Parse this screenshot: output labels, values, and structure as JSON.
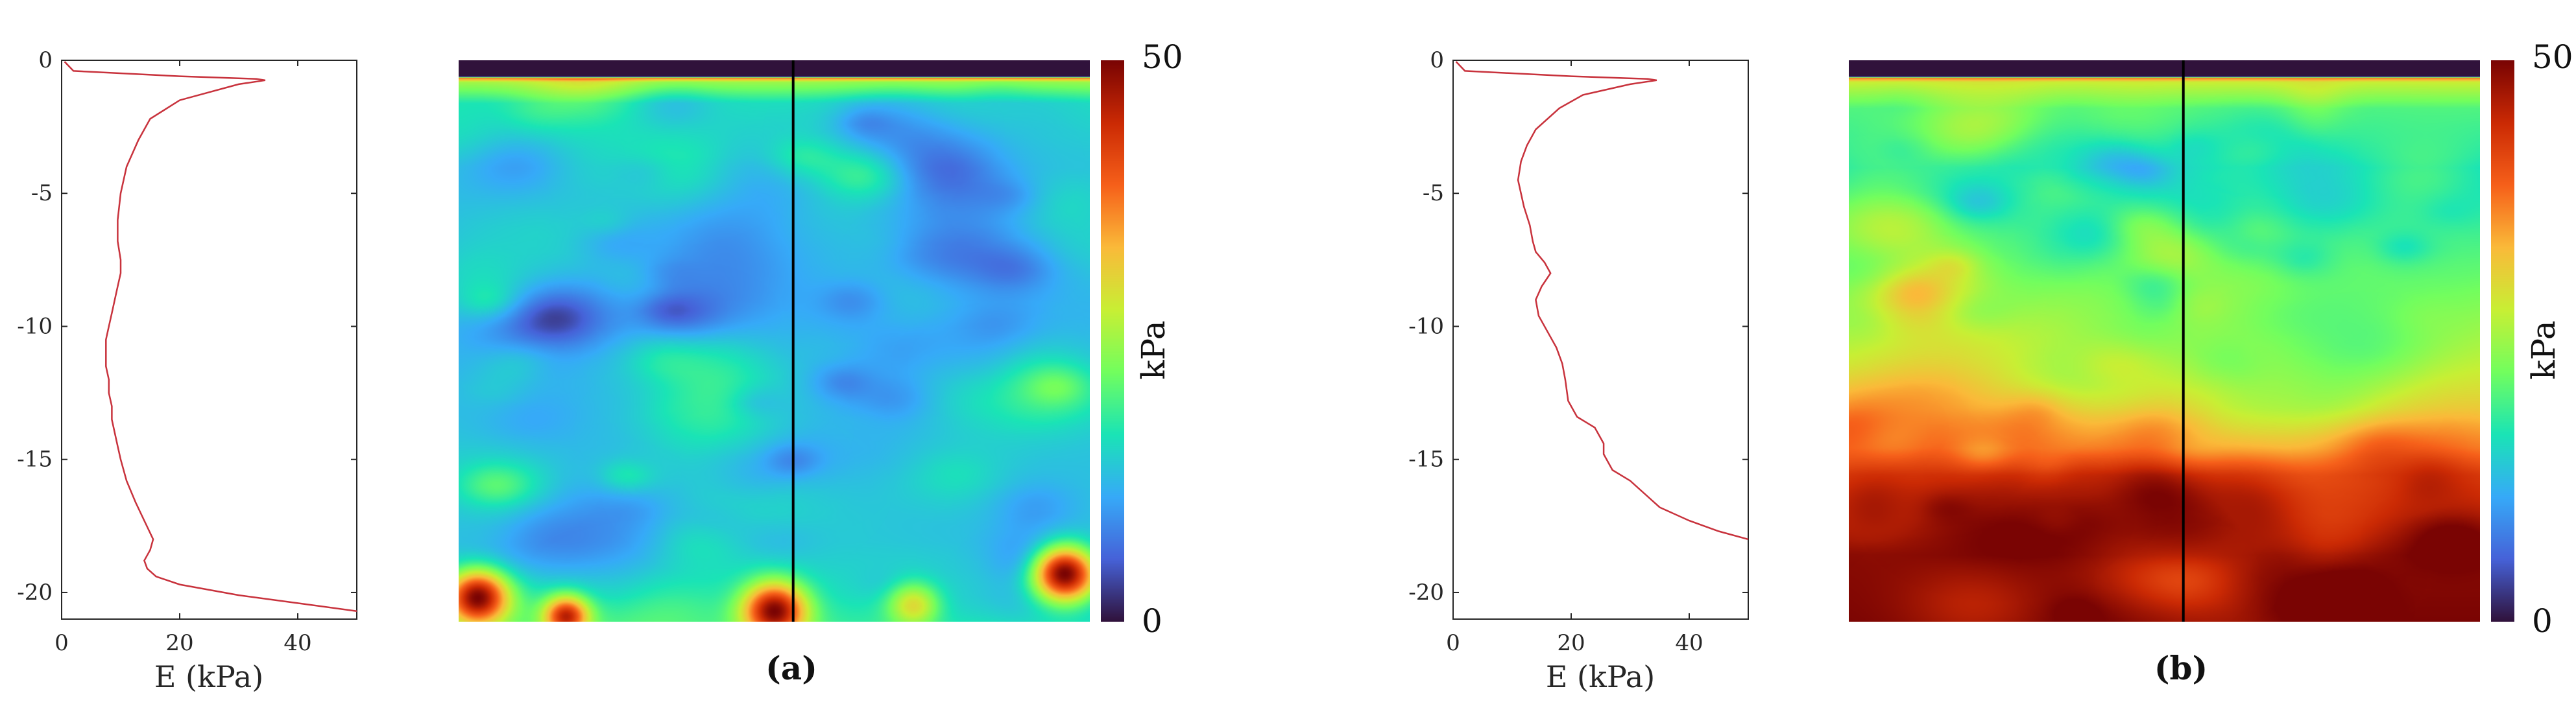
{
  "colors": {
    "profile_line": "#c8323c",
    "section_line": "#000000"
  },
  "colormap": "turbo",
  "chart_data": [
    {
      "panel": "a",
      "caption": "(a)",
      "profile": {
        "type": "line",
        "xlabel": "E (kPa)",
        "xlim": [
          0,
          50
        ],
        "ylim": [
          -21,
          0
        ],
        "xticks": [
          "0",
          "20",
          "40"
        ],
        "yticks": [
          "0",
          "-5",
          "-10",
          "-15",
          "-20"
        ],
        "x": [
          0.5,
          2,
          20,
          33,
          34.5,
          30,
          20,
          15,
          13,
          11,
          10,
          9.5,
          9.5,
          10,
          10,
          9.5,
          9,
          8.5,
          8,
          7.5,
          7.5,
          7.5,
          8,
          8,
          8.5,
          8.5,
          9,
          9.5,
          10,
          11,
          12.5,
          14,
          15.5,
          15,
          14,
          14.5,
          16,
          20,
          30,
          40,
          50
        ],
        "y": [
          -0.05,
          -0.4,
          -0.6,
          -0.7,
          -0.75,
          -0.9,
          -1.5,
          -2.2,
          -3.0,
          -4.0,
          -5.0,
          -6.0,
          -6.8,
          -7.5,
          -8.0,
          -8.5,
          -9.0,
          -9.5,
          -10.0,
          -10.5,
          -11.0,
          -11.5,
          -12.0,
          -12.5,
          -13.0,
          -13.5,
          -14.0,
          -14.5,
          -15.0,
          -15.8,
          -16.6,
          -17.3,
          -18.0,
          -18.4,
          -18.8,
          -19.1,
          -19.4,
          -19.7,
          -20.1,
          -20.4,
          -20.7
        ]
      },
      "field": {
        "type": "heatmap",
        "colorbar_label": "kPa",
        "clim": [
          0,
          50
        ],
        "colorbar_ticks": [
          "0",
          "50"
        ],
        "background_kpa": 12,
        "depth_trend_kpa": [
          [
            0,
            0
          ],
          [
            0.6,
            0
          ],
          [
            0.65,
            38
          ],
          [
            0.8,
            25
          ],
          [
            1.6,
            16
          ],
          [
            4,
            13
          ],
          [
            10,
            12
          ],
          [
            15,
            13
          ],
          [
            18,
            14
          ],
          [
            20,
            16
          ],
          [
            21,
            18
          ]
        ],
        "hot_spots": [
          {
            "x": 0.03,
            "d": 20.1,
            "r": 0.9,
            "v": 50
          },
          {
            "x": 0.17,
            "d": 20.8,
            "r": 0.7,
            "v": 46
          },
          {
            "x": 0.5,
            "d": 20.6,
            "r": 1.0,
            "v": 50
          },
          {
            "x": 0.72,
            "d": 20.4,
            "r": 0.8,
            "v": 30
          },
          {
            "x": 0.96,
            "d": 19.2,
            "r": 1.0,
            "v": 50
          }
        ],
        "section_line_x": 0.53
      }
    },
    {
      "panel": "b",
      "caption": "(b)",
      "profile": {
        "type": "line",
        "xlabel": "E (kPa)",
        "xlim": [
          0,
          50
        ],
        "ylim": [
          -21,
          0
        ],
        "xticks": [
          "0",
          "20",
          "40"
        ],
        "yticks": [
          "0",
          "-5",
          "-10",
          "-15",
          "-20"
        ],
        "x": [
          0.5,
          2,
          20,
          33,
          34.5,
          30,
          22,
          18,
          14,
          12.5,
          11.5,
          11,
          12,
          13,
          13.5,
          14,
          15.5,
          16.5,
          15,
          14,
          14.5,
          16,
          17.5,
          18.5,
          19,
          19.5,
          21,
          24,
          25.5,
          25.5,
          27,
          30,
          32,
          35,
          40,
          45,
          50
        ],
        "y": [
          -0.05,
          -0.4,
          -0.6,
          -0.7,
          -0.75,
          -0.9,
          -1.3,
          -1.8,
          -2.6,
          -3.2,
          -3.8,
          -4.5,
          -5.5,
          -6.2,
          -6.8,
          -7.2,
          -7.6,
          -8.0,
          -8.5,
          -9.0,
          -9.6,
          -10.2,
          -10.8,
          -11.4,
          -12.0,
          -12.8,
          -13.4,
          -13.8,
          -14.4,
          -14.8,
          -15.4,
          -15.8,
          -16.2,
          -16.8,
          -17.3,
          -17.7,
          -18.0
        ]
      },
      "field": {
        "type": "heatmap",
        "colorbar_label": "kPa",
        "clim": [
          0,
          50
        ],
        "colorbar_ticks": [
          "0",
          "50"
        ],
        "background_kpa": 16,
        "depth_trend_kpa": [
          [
            0,
            0
          ],
          [
            0.6,
            0
          ],
          [
            0.65,
            38
          ],
          [
            0.8,
            28
          ],
          [
            1.8,
            20
          ],
          [
            4,
            16
          ],
          [
            8,
            22
          ],
          [
            11,
            27
          ],
          [
            13,
            31
          ],
          [
            14.5,
            36
          ],
          [
            15.5,
            42
          ],
          [
            17,
            45
          ],
          [
            18.5,
            49
          ],
          [
            21,
            50
          ]
        ],
        "hot_spots": [
          {
            "x": 0.04,
            "d": 16.8,
            "r": 1.2,
            "v": 47
          },
          {
            "x": 0.22,
            "d": 17.6,
            "r": 1.0,
            "v": 48
          },
          {
            "x": 0.35,
            "d": 17.2,
            "r": 1.0,
            "v": 47
          },
          {
            "x": 0.63,
            "d": 17.0,
            "r": 1.2,
            "v": 47
          },
          {
            "x": 0.92,
            "d": 16.0,
            "r": 1.0,
            "v": 46
          }
        ],
        "section_line_x": 0.53
      }
    }
  ]
}
